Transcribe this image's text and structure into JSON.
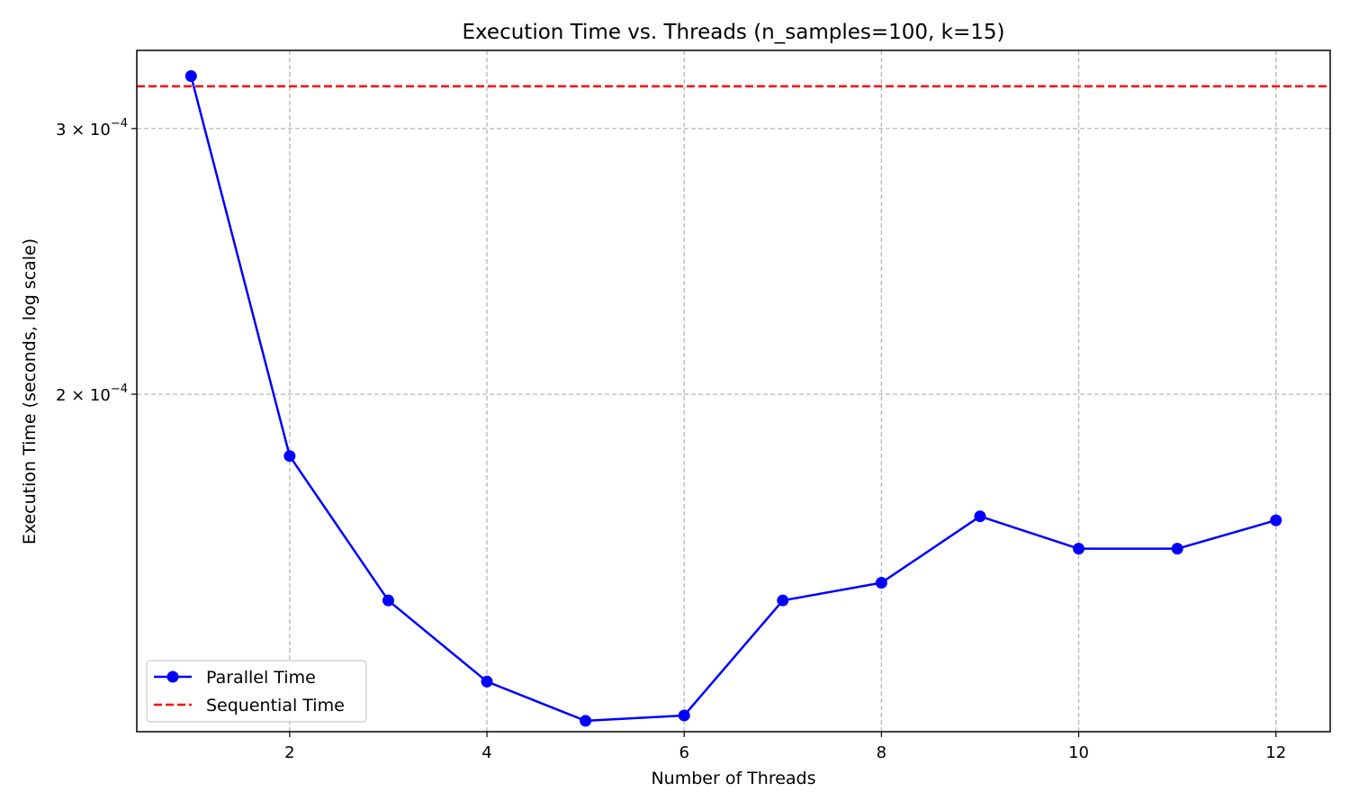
{
  "chart_data": {
    "type": "line",
    "title": "Execution Time vs. Threads (n_samples=100, k=15)",
    "xlabel": "Number of Threads",
    "ylabel": "Execution Time (seconds, log scale)",
    "y_scale": "log",
    "xlim": [
      0.45,
      12.55
    ],
    "ylim": [
      0.0001195,
      0.000338
    ],
    "x_ticks": [
      2,
      4,
      6,
      8,
      10,
      12
    ],
    "y_ticks": [
      {
        "value": 0.0002,
        "mantissa": "2",
        "exp": "−4"
      },
      {
        "value": 0.0003,
        "mantissa": "3",
        "exp": "−4"
      }
    ],
    "grid": true,
    "legend_position": "lower left",
    "series": [
      {
        "name": "Parallel Time",
        "color": "#0000ff",
        "style": "solid",
        "marker": "circle",
        "x": [
          1,
          2,
          3,
          4,
          5,
          6,
          7,
          8,
          9,
          10,
          11,
          12
        ],
        "values": [
          0.000325,
          0.000182,
          0.000146,
          0.000129,
          0.0001215,
          0.0001225,
          0.000146,
          0.00015,
          0.000166,
          0.000158,
          0.000158,
          0.000165
        ]
      },
      {
        "name": "Sequential Time",
        "color": "#ff0000",
        "style": "dashed",
        "marker": "none",
        "constant": 0.00032
      }
    ]
  }
}
